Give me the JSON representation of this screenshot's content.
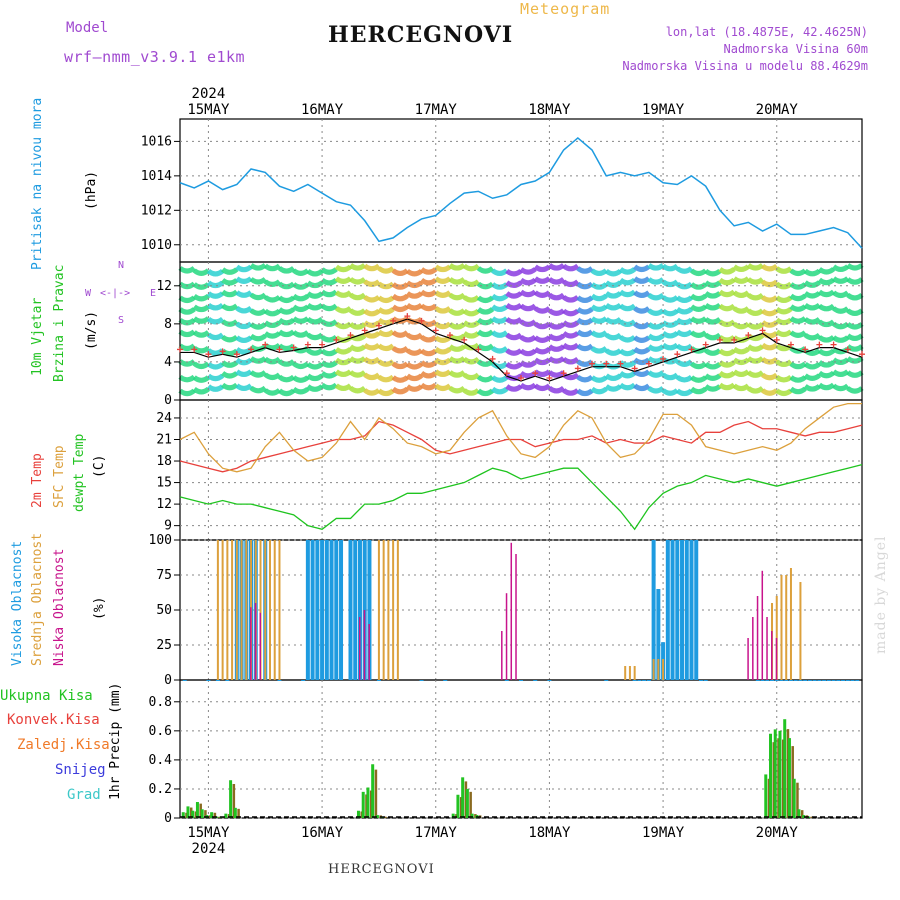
{
  "header": {
    "model_label": "Model",
    "model_name": "wrf—nmm_v3.9.1  e1km",
    "title": "HERCEGNOVI",
    "meteogram": "Meteogram",
    "lonlat": "lon,lat (18.4875E, 42.4625N)",
    "elev": "Nadmorska Visina 60m",
    "elev_model": "Nadmorska Visina u modelu 88.4629m",
    "footer": "HERCEGNOVI",
    "credit": "made by Angel",
    "year": "2024"
  },
  "colors": {
    "pressure": "#1e9be0",
    "temp2m": "#e8413c",
    "sfc": "#dca03c",
    "dew": "#1fc41f",
    "high_cloud": "#1e9be0",
    "mid_cloud": "#dca03c",
    "low_cloud": "#c8148c",
    "total_rain": "#22c322",
    "conv_rain": "#e8413c",
    "frz_rain": "#f07a28",
    "snow": "#3c3cdc",
    "hail": "#3cc8c8",
    "olive": "#8a6a20"
  },
  "panels": {
    "pressure": {
      "labels": [
        "Pritisak na nivou mora",
        "(hPa)"
      ]
    },
    "wind": {
      "labels": [
        "10m Vjetar",
        "Brzina i Pravac",
        "(m/s)"
      ],
      "compass": {
        "n": "N",
        "s": "S",
        "w": "W",
        "e": "E"
      }
    },
    "temp": {
      "labels": [
        "2m Temp",
        "SFC Temp",
        "dewpt Temp",
        "(C)"
      ]
    },
    "cloud": {
      "labels": [
        "Visoka Oblacnost",
        "Srednja Oblacnost",
        "Niska Oblacnost",
        "(%)"
      ]
    },
    "precip": {
      "labels": [
        "Ukupna Kisa",
        "Konvek.Kisa",
        "Zaledj.Kisa",
        "Snijeg",
        "Grad",
        "1hr Precip (mm)"
      ]
    }
  },
  "chart_data": [
    {
      "type": "line",
      "title": "Pritisak na nivou mora",
      "ylabel": "(hPa)",
      "x_unit": "hours from 15MAY 00Z",
      "x_ticks": [
        "15MAY",
        "16MAY",
        "17MAY",
        "18MAY",
        "19MAY",
        "20MAY"
      ],
      "xlim": [
        -6,
        138
      ],
      "ylim": [
        1009,
        1017.3
      ],
      "yticks": [
        1010,
        1012,
        1014,
        1016
      ],
      "series": [
        {
          "name": "Pritisak na nivou mora",
          "x": [
            -6,
            -3,
            0,
            3,
            6,
            9,
            12,
            15,
            18,
            21,
            24,
            27,
            30,
            33,
            36,
            39,
            42,
            45,
            48,
            51,
            54,
            57,
            60,
            63,
            66,
            69,
            72,
            75,
            78,
            81,
            84,
            87,
            90,
            93,
            96,
            99,
            102,
            105,
            108,
            111,
            114,
            117,
            120,
            123,
            126,
            129,
            132,
            135,
            138
          ],
          "values": [
            1013.6,
            1013.3,
            1013.7,
            1013.2,
            1013.5,
            1014.4,
            1014.2,
            1013.4,
            1013.1,
            1013.5,
            1013.0,
            1012.5,
            1012.3,
            1011.4,
            1010.2,
            1010.4,
            1011.0,
            1011.5,
            1011.7,
            1012.4,
            1013.0,
            1013.1,
            1012.7,
            1012.9,
            1013.5,
            1013.7,
            1014.2,
            1015.5,
            1016.2,
            1015.5,
            1014.0,
            1014.2,
            1014.0,
            1014.2,
            1013.6,
            1013.5,
            1014.0,
            1013.4,
            1012.0,
            1011.1,
            1011.3,
            1010.8,
            1011.2,
            1010.6,
            1010.6,
            1010.8,
            1011.0,
            1010.7,
            1009.8
          ]
        }
      ],
      "grid": true
    },
    {
      "type": "line",
      "title": "10m Vjetar Brzina i Pravac",
      "ylabel": "(m/s)",
      "ylim": [
        0,
        14.5
      ],
      "yticks": [
        0,
        4,
        8,
        12
      ],
      "grid": true,
      "series": [
        {
          "name": "Brzina",
          "x": [
            -6,
            -3,
            0,
            3,
            6,
            9,
            12,
            15,
            18,
            21,
            24,
            27,
            30,
            33,
            36,
            39,
            42,
            45,
            48,
            51,
            54,
            57,
            60,
            63,
            66,
            69,
            72,
            75,
            78,
            81,
            84,
            87,
            90,
            93,
            96,
            99,
            102,
            105,
            108,
            111,
            114,
            117,
            120,
            123,
            126,
            129,
            132,
            135,
            138
          ],
          "values": [
            5,
            5,
            4.5,
            4.8,
            4.5,
            5,
            5.5,
            5,
            5.2,
            5.5,
            5.5,
            6,
            6.5,
            7,
            7.5,
            8,
            8.5,
            8,
            7,
            6.5,
            6,
            5,
            4,
            2.5,
            2,
            2.5,
            2,
            2.5,
            3,
            3.5,
            3.5,
            3.5,
            3,
            3.5,
            4,
            4.5,
            5,
            5.5,
            6,
            6,
            6.5,
            7,
            6,
            5.5,
            5,
            5.5,
            5.5,
            5,
            4.5
          ]
        }
      ]
    },
    {
      "type": "line",
      "title": "2m Temp / SFC Temp / dewpt Temp",
      "ylabel": "(C)",
      "ylim": [
        7,
        26.5
      ],
      "yticks": [
        9,
        12,
        15,
        18,
        21,
        24
      ],
      "grid": true,
      "x": [
        -6,
        -3,
        0,
        3,
        6,
        9,
        12,
        15,
        18,
        21,
        24,
        27,
        30,
        33,
        36,
        39,
        42,
        45,
        48,
        51,
        54,
        57,
        60,
        63,
        66,
        69,
        72,
        75,
        78,
        81,
        84,
        87,
        90,
        93,
        96,
        99,
        102,
        105,
        108,
        111,
        114,
        117,
        120,
        123,
        126,
        129,
        132,
        135,
        138
      ],
      "series": [
        {
          "name": "2m Temp",
          "values": [
            18,
            17.5,
            17,
            16.5,
            17,
            18,
            18.5,
            19,
            19.5,
            20,
            20.5,
            21,
            21,
            21.5,
            23.5,
            23,
            22,
            21,
            19.5,
            19,
            19.5,
            20,
            20.5,
            21,
            21,
            20,
            20.5,
            21,
            21,
            21.5,
            20.5,
            21,
            20.5,
            20.5,
            21.5,
            21,
            20.5,
            22,
            22,
            23,
            23.5,
            22.5,
            22.5,
            22,
            21.5,
            22,
            22,
            22.5,
            23
          ]
        },
        {
          "name": "SFC Temp",
          "values": [
            21,
            22,
            19,
            17,
            16.5,
            17,
            20,
            22,
            19.5,
            18,
            18.5,
            20.5,
            23.5,
            21,
            24,
            22.5,
            20.5,
            20,
            19,
            19.5,
            22,
            24,
            25,
            21.5,
            19,
            18.5,
            20,
            23,
            25,
            24,
            20.5,
            18.5,
            19,
            21,
            24.5,
            24.5,
            23,
            20,
            19.5,
            19,
            19.5,
            20,
            19.5,
            20.5,
            22.5,
            24,
            25.5,
            26,
            26
          ]
        },
        {
          "name": "dewpt Temp",
          "values": [
            13,
            12.5,
            12,
            12.5,
            12,
            12,
            11.5,
            11,
            10.5,
            9,
            8.5,
            10,
            10,
            12,
            12,
            12.5,
            13.5,
            13.5,
            14,
            14.5,
            15,
            16,
            17,
            16.5,
            15.5,
            16,
            16.5,
            17,
            17,
            15,
            13,
            11,
            8.5,
            11.5,
            13.5,
            14.5,
            15,
            16,
            15.5,
            15,
            15.5,
            15,
            14.5,
            15,
            15.5,
            16,
            16.5,
            17,
            17.5
          ]
        }
      ]
    },
    {
      "type": "bar",
      "title": "Visoka / Srednja / Niska Oblacnost",
      "ylabel": "(%)",
      "ylim": [
        0,
        100
      ],
      "yticks": [
        0,
        25,
        50,
        75,
        100
      ],
      "grid": true,
      "series": [
        {
          "name": "Visoka Oblacnost",
          "x": [
            -5,
            0,
            2,
            4,
            6,
            7,
            8,
            9,
            10,
            12,
            15,
            20,
            21,
            22,
            23,
            24,
            25,
            26,
            27,
            28,
            30,
            31,
            32,
            33,
            34,
            36,
            45,
            50,
            63,
            66,
            69,
            72,
            84,
            90,
            91,
            92,
            93,
            94,
            95,
            96,
            97,
            98,
            99,
            100,
            101,
            102,
            103,
            104,
            105,
            116,
            117,
            118,
            119,
            120,
            121,
            122,
            123,
            124,
            125,
            126,
            127,
            128,
            129,
            130,
            131,
            132,
            133,
            134,
            135,
            136,
            137
          ],
          "values": [
            0,
            0,
            0,
            0,
            100,
            100,
            100,
            100,
            100,
            100,
            0,
            0,
            100,
            100,
            100,
            100,
            100,
            100,
            100,
            100,
            100,
            100,
            100,
            100,
            100,
            0,
            0,
            0,
            0,
            0,
            0,
            0,
            0,
            0,
            0,
            0,
            0,
            100,
            65,
            27,
            100,
            100,
            100,
            100,
            100,
            100,
            100,
            0,
            0,
            0,
            0,
            0,
            0,
            0,
            0,
            0,
            0,
            0,
            0,
            0,
            0,
            0,
            0,
            0,
            0,
            0,
            0,
            0,
            0,
            0,
            0
          ]
        }
      ]
    },
    {
      "type": "bar",
      "title": "1hr Precip",
      "ylabel": "1hr Precip (mm)",
      "ylim": [
        0,
        0.95
      ],
      "yticks": [
        0,
        0.2,
        0.4,
        0.6,
        0.8
      ],
      "grid": true,
      "x": [
        -5,
        -4,
        -3,
        -2,
        -1,
        0,
        1,
        2,
        3,
        4,
        5,
        6,
        32,
        33,
        34,
        35,
        36,
        37,
        52,
        53,
        54,
        55,
        56,
        57,
        118,
        119,
        120,
        121,
        122,
        123,
        124,
        125,
        126,
        127
      ],
      "series": [
        {
          "name": "Ukupna Kisa",
          "values": [
            0.04,
            0.08,
            0.05,
            0.11,
            0.06,
            0.02,
            0.04,
            0.01,
            0.01,
            0.03,
            0.26,
            0.07,
            0.05,
            0.18,
            0.21,
            0.37,
            0.02,
            0.01,
            0.03,
            0.16,
            0.28,
            0.2,
            0.03,
            0.02,
            0.3,
            0.58,
            0.61,
            0.6,
            0.68,
            0.55,
            0.27,
            0.06,
            0.02,
            0.01
          ]
        }
      ]
    }
  ]
}
